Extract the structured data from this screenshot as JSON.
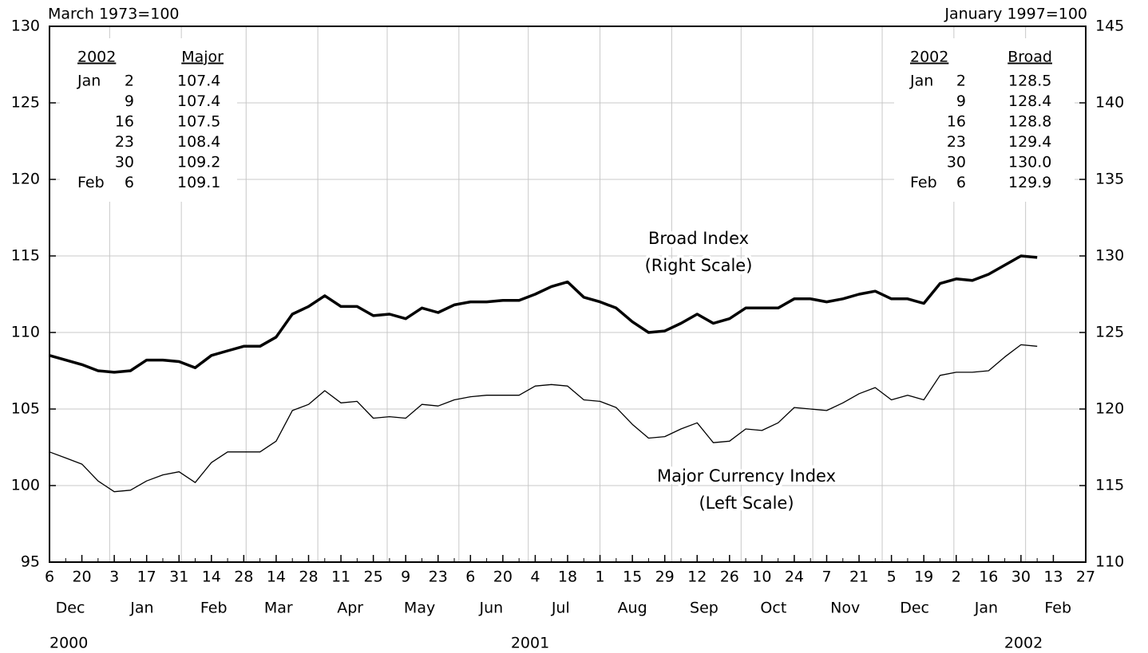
{
  "chart_data": {
    "type": "line",
    "left_axis_note": "March 1973=100",
    "right_axis_note": "January 1997=100",
    "x": [
      "2000-12-06",
      "2000-12-13",
      "2000-12-20",
      "2000-12-27",
      "2001-01-03",
      "2001-01-10",
      "2001-01-17",
      "2001-01-24",
      "2001-01-31",
      "2001-02-07",
      "2001-02-14",
      "2001-02-21",
      "2001-02-28",
      "2001-03-07",
      "2001-03-14",
      "2001-03-21",
      "2001-03-28",
      "2001-04-04",
      "2001-04-11",
      "2001-04-18",
      "2001-04-25",
      "2001-05-02",
      "2001-05-09",
      "2001-05-16",
      "2001-05-23",
      "2001-05-30",
      "2001-06-06",
      "2001-06-13",
      "2001-06-20",
      "2001-06-27",
      "2001-07-04",
      "2001-07-11",
      "2001-07-18",
      "2001-07-25",
      "2001-08-01",
      "2001-08-08",
      "2001-08-15",
      "2001-08-22",
      "2001-08-29",
      "2001-09-05",
      "2001-09-12",
      "2001-09-19",
      "2001-09-26",
      "2001-10-03",
      "2001-10-10",
      "2001-10-17",
      "2001-10-24",
      "2001-10-31",
      "2001-11-07",
      "2001-11-14",
      "2001-11-21",
      "2001-11-28",
      "2001-12-05",
      "2001-12-12",
      "2001-12-19",
      "2001-12-26",
      "2002-01-02",
      "2002-01-09",
      "2002-01-16",
      "2002-01-23",
      "2002-01-30",
      "2002-02-06"
    ],
    "series": [
      {
        "name": "Broad Index",
        "name_note": "(Right Scale)",
        "axis": "y2",
        "color": "#000000",
        "width": 3.5,
        "values": [
          123.5,
          123.2,
          122.9,
          122.5,
          122.4,
          122.5,
          123.2,
          123.2,
          123.1,
          122.7,
          123.5,
          123.8,
          124.1,
          124.1,
          124.7,
          126.2,
          126.7,
          127.4,
          126.7,
          126.7,
          126.1,
          126.2,
          125.9,
          126.6,
          126.3,
          126.8,
          127.0,
          127.0,
          127.1,
          127.1,
          127.5,
          128.0,
          128.3,
          127.3,
          127.0,
          126.6,
          125.7,
          125.0,
          125.1,
          125.6,
          126.2,
          125.6,
          125.9,
          126.6,
          126.6,
          126.6,
          127.2,
          127.2,
          127.0,
          127.2,
          127.5,
          127.7,
          127.2,
          127.2,
          126.9,
          128.2,
          128.5,
          128.4,
          128.8,
          129.4,
          130.0,
          129.9
        ]
      },
      {
        "name": "Major Currency Index",
        "name_note": "(Left Scale)",
        "axis": "y",
        "color": "#000000",
        "width": 1.3,
        "values": [
          102.2,
          101.8,
          101.4,
          100.3,
          99.6,
          99.7,
          100.3,
          100.7,
          100.9,
          100.2,
          101.5,
          102.2,
          102.2,
          102.2,
          102.9,
          104.9,
          105.3,
          106.2,
          105.4,
          105.5,
          104.4,
          104.5,
          104.4,
          105.3,
          105.2,
          105.6,
          105.8,
          105.9,
          105.9,
          105.9,
          106.5,
          106.6,
          106.5,
          105.6,
          105.5,
          105.1,
          104.0,
          103.1,
          103.2,
          103.7,
          104.1,
          102.8,
          102.9,
          103.7,
          103.6,
          104.1,
          105.1,
          105.0,
          104.9,
          105.4,
          106.0,
          106.4,
          105.6,
          105.9,
          105.6,
          107.2,
          107.4,
          107.4,
          107.5,
          108.4,
          109.2,
          109.1
        ]
      }
    ],
    "xlim": [
      "2000-12-06",
      "2002-02-27"
    ],
    "xticks": [
      {
        "value": "2000-12-06",
        "label": "6"
      },
      {
        "value": "2000-12-20",
        "label": "20"
      },
      {
        "value": "2001-01-03",
        "label": "3"
      },
      {
        "value": "2001-01-17",
        "label": "17"
      },
      {
        "value": "2001-01-31",
        "label": "31"
      },
      {
        "value": "2001-02-14",
        "label": "14"
      },
      {
        "value": "2001-02-28",
        "label": "28"
      },
      {
        "value": "2001-03-14",
        "label": "14"
      },
      {
        "value": "2001-03-28",
        "label": "28"
      },
      {
        "value": "2001-04-11",
        "label": "11"
      },
      {
        "value": "2001-04-25",
        "label": "25"
      },
      {
        "value": "2001-05-09",
        "label": "9"
      },
      {
        "value": "2001-05-23",
        "label": "23"
      },
      {
        "value": "2001-06-06",
        "label": "6"
      },
      {
        "value": "2001-06-20",
        "label": "20"
      },
      {
        "value": "2001-07-04",
        "label": "4"
      },
      {
        "value": "2001-07-18",
        "label": "18"
      },
      {
        "value": "2001-08-01",
        "label": "1"
      },
      {
        "value": "2001-08-15",
        "label": "15"
      },
      {
        "value": "2001-08-29",
        "label": "29"
      },
      {
        "value": "2001-09-12",
        "label": "12"
      },
      {
        "value": "2001-09-26",
        "label": "26"
      },
      {
        "value": "2001-10-10",
        "label": "10"
      },
      {
        "value": "2001-10-24",
        "label": "24"
      },
      {
        "value": "2001-11-07",
        "label": "7"
      },
      {
        "value": "2001-11-21",
        "label": "21"
      },
      {
        "value": "2001-12-05",
        "label": "5"
      },
      {
        "value": "2001-12-19",
        "label": "19"
      },
      {
        "value": "2002-01-02",
        "label": "2"
      },
      {
        "value": "2002-01-16",
        "label": "16"
      },
      {
        "value": "2002-01-30",
        "label": "30"
      },
      {
        "value": "2002-02-13",
        "label": "13"
      },
      {
        "value": "2002-02-27",
        "label": "27"
      }
    ],
    "month_labels": [
      {
        "value": "2000-12",
        "label": "Dec"
      },
      {
        "value": "2001-01",
        "label": "Jan"
      },
      {
        "value": "2001-02",
        "label": "Feb"
      },
      {
        "value": "2001-03",
        "label": "Mar"
      },
      {
        "value": "2001-04",
        "label": "Apr"
      },
      {
        "value": "2001-05",
        "label": "May"
      },
      {
        "value": "2001-06",
        "label": "Jun"
      },
      {
        "value": "2001-07",
        "label": "Jul"
      },
      {
        "value": "2001-08",
        "label": "Aug"
      },
      {
        "value": "2001-09",
        "label": "Sep"
      },
      {
        "value": "2001-10",
        "label": "Oct"
      },
      {
        "value": "2001-11",
        "label": "Nov"
      },
      {
        "value": "2001-12",
        "label": "Dec"
      },
      {
        "value": "2002-01",
        "label": "Jan"
      },
      {
        "value": "2002-02",
        "label": "Feb"
      }
    ],
    "year_labels": [
      "2000",
      "2001",
      "2002"
    ],
    "ylim": [
      95,
      130
    ],
    "yticks": [
      95,
      100,
      105,
      110,
      115,
      120,
      125,
      130
    ],
    "y2lim": [
      110,
      145
    ],
    "y2ticks": [
      110,
      115,
      120,
      125,
      130,
      135,
      140,
      145
    ],
    "grid": true,
    "tables": [
      {
        "title": "2002",
        "header": "Major",
        "rows": [
          {
            "month": "Jan",
            "day": "2",
            "value": "107.4"
          },
          {
            "day": "9",
            "value": "107.4"
          },
          {
            "day": "16",
            "value": "107.5"
          },
          {
            "day": "23",
            "value": "108.4"
          },
          {
            "day": "30",
            "value": "109.2"
          },
          {
            "month": "Feb",
            "day": "6",
            "value": "109.1"
          }
        ]
      },
      {
        "title": "2002",
        "header": "Broad",
        "rows": [
          {
            "month": "Jan",
            "day": "2",
            "value": "128.5"
          },
          {
            "day": "9",
            "value": "128.4"
          },
          {
            "day": "16",
            "value": "128.8"
          },
          {
            "day": "23",
            "value": "129.4"
          },
          {
            "day": "30",
            "value": "130.0"
          },
          {
            "month": "Feb",
            "day": "6",
            "value": "129.9"
          }
        ]
      }
    ]
  }
}
